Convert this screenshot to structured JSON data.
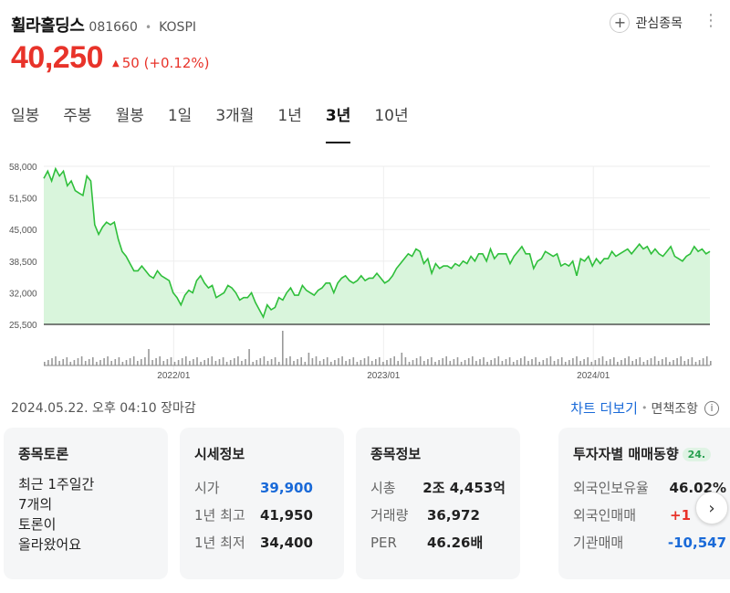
{
  "header": {
    "name": "휠라홀딩스",
    "code": "081660",
    "market": "KOSPI",
    "watch_label": "관심종목",
    "more_icon": "⋮",
    "plus_icon": "+"
  },
  "price": {
    "current": "40,250",
    "change": "50",
    "change_pct": "(+0.12%)",
    "direction_icon": "▲"
  },
  "tabs": [
    {
      "label": "일봉"
    },
    {
      "label": "주봉"
    },
    {
      "label": "월봉"
    },
    {
      "label": "1일"
    },
    {
      "label": "3개월"
    },
    {
      "label": "1년"
    },
    {
      "label": "3년",
      "active": true
    },
    {
      "label": "10년"
    }
  ],
  "chart_data": {
    "type": "area",
    "y_ticks": [
      "58,000",
      "51,500",
      "45,000",
      "38,500",
      "32,000",
      "25,500"
    ],
    "ylim": [
      25500,
      58000
    ],
    "x_ticks": [
      "2022/01",
      "2023/01",
      "2024/01"
    ],
    "x_tick_pos": [
      0.195,
      0.51,
      0.825
    ],
    "line_color": "#2fbf3b",
    "fill_color": "#d9f5dc",
    "values": [
      55500,
      57000,
      55000,
      57500,
      56000,
      57000,
      54000,
      55000,
      53000,
      52500,
      52000,
      56000,
      55000,
      46000,
      44000,
      45500,
      46500,
      46000,
      46500,
      43000,
      40500,
      39500,
      38000,
      36500,
      36500,
      37500,
      36500,
      35500,
      35000,
      36500,
      35500,
      35000,
      34500,
      32000,
      31000,
      29500,
      31500,
      32500,
      32000,
      34500,
      35500,
      34000,
      33000,
      33500,
      31000,
      31500,
      32000,
      33500,
      33000,
      32000,
      30500,
      31000,
      31000,
      32000,
      30000,
      28500,
      27000,
      29500,
      28500,
      29000,
      31000,
      30500,
      32000,
      33000,
      31500,
      31500,
      33500,
      32500,
      32000,
      31500,
      32500,
      33000,
      34000,
      34000,
      32000,
      34000,
      35000,
      35500,
      34500,
      34000,
      34500,
      35500,
      34500,
      35000,
      35000,
      36000,
      35000,
      34000,
      34500,
      35500,
      37000,
      38000,
      39000,
      40000,
      39500,
      41000,
      40500,
      38000,
      39000,
      36000,
      38000,
      37000,
      37500,
      37500,
      37000,
      38000,
      37500,
      38500,
      38000,
      39500,
      38500,
      40000,
      40000,
      38500,
      41000,
      39000,
      40000,
      40000,
      40000,
      38000,
      39500,
      40500,
      41500,
      40000,
      40000,
      37000,
      38500,
      39000,
      40500,
      40000,
      39500,
      40000,
      37500,
      38000,
      37500,
      38500,
      35500,
      39000,
      38500,
      39500,
      37500,
      39000,
      38000,
      39000,
      39000,
      40500,
      39500,
      40000,
      40500,
      41000,
      40000,
      41000,
      42000,
      41000,
      41500,
      40000,
      41000,
      40000,
      39500,
      40500,
      41500,
      39500,
      39000,
      38500,
      39500,
      40000,
      41500,
      40500,
      41000,
      40000,
      40500
    ]
  },
  "timestamp": "2024.05.22. 오후 04:10 장마감",
  "more_chart_label": "차트 더보기",
  "disclaimer_label": "면책조항",
  "info_icon": "i",
  "cards": {
    "discussion": {
      "title": "종목토론",
      "lines": [
        "최근 1주일간",
        "7개의",
        "토론이",
        "올라왔어요"
      ]
    },
    "quote": {
      "title": "시세정보",
      "rows": [
        {
          "k": "시가",
          "v": "39,900",
          "color": "blue"
        },
        {
          "k": "1년 최고",
          "v": "41,950",
          "color": "default"
        },
        {
          "k": "1년 최저",
          "v": "34,400",
          "color": "default"
        }
      ]
    },
    "info": {
      "title": "종목정보",
      "rows": [
        {
          "k": "시총",
          "v": "2조 4,453억"
        },
        {
          "k": "거래량",
          "v": "36,972"
        },
        {
          "k": "PER",
          "v": "46.26배"
        }
      ]
    },
    "investor": {
      "title": "투자자별 매매동향",
      "badge": "24.",
      "rows": [
        {
          "k": "외국인보유율",
          "v": "46.02%"
        },
        {
          "k": "외국인매매",
          "v": "+1"
        },
        {
          "k": "기관매매",
          "v": "-10,547"
        }
      ]
    }
  },
  "next_icon": "›"
}
